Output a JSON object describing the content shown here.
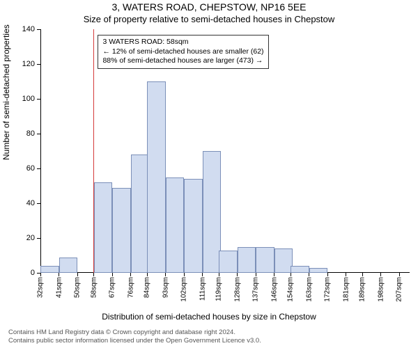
{
  "title": "3, WATERS ROAD, CHEPSTOW, NP16 5EE",
  "subtitle": "Size of property relative to semi-detached houses in Chepstow",
  "y_axis_label": "Number of semi-detached properties",
  "x_axis_label": "Distribution of semi-detached houses by size in Chepstow",
  "chart": {
    "type": "histogram",
    "ylim": [
      0,
      140
    ],
    "ytick_step": 20,
    "yticks": [
      0,
      20,
      40,
      60,
      80,
      100,
      120,
      140
    ],
    "x_start": 32,
    "x_end": 212,
    "bar_bin_width": 9,
    "xticks": [
      32,
      41,
      50,
      58,
      67,
      76,
      84,
      93,
      102,
      111,
      119,
      128,
      137,
      146,
      154,
      163,
      172,
      181,
      189,
      198,
      207
    ],
    "xtick_unit": "sqm",
    "bar_fill": "#d1dcf0",
    "bar_border": "#7b8fb8",
    "background": "#ffffff",
    "axis_color": "#000000",
    "label_fontsize": 12,
    "tick_fontsize": 11,
    "bars": [
      {
        "x": 32,
        "v": 4
      },
      {
        "x": 41,
        "v": 9
      },
      {
        "x": 50,
        "v": 0
      },
      {
        "x": 58,
        "v": 52
      },
      {
        "x": 67,
        "v": 49
      },
      {
        "x": 76,
        "v": 68
      },
      {
        "x": 84,
        "v": 110
      },
      {
        "x": 93,
        "v": 55
      },
      {
        "x": 102,
        "v": 54
      },
      {
        "x": 111,
        "v": 70
      },
      {
        "x": 119,
        "v": 13
      },
      {
        "x": 128,
        "v": 15
      },
      {
        "x": 137,
        "v": 15
      },
      {
        "x": 146,
        "v": 14
      },
      {
        "x": 154,
        "v": 4
      },
      {
        "x": 163,
        "v": 3
      },
      {
        "x": 172,
        "v": 0
      },
      {
        "x": 181,
        "v": 0
      },
      {
        "x": 189,
        "v": 0
      },
      {
        "x": 198,
        "v": 0
      },
      {
        "x": 207,
        "v": 0
      }
    ],
    "reference_line": {
      "x": 58,
      "color": "#d43b3b"
    },
    "annotation": {
      "line1": "3 WATERS ROAD: 58sqm",
      "line2": "← 12% of semi-detached houses are smaller (62)",
      "line3": "88% of semi-detached houses are larger (473) →",
      "box_border": "#333333",
      "box_bg": "#ffffff",
      "fontsize": 10.5,
      "top_offset": 8,
      "left_x": 60
    }
  },
  "footer": {
    "line1": "Contains HM Land Registry data © Crown copyright and database right 2024.",
    "line2": "Contains public sector information licensed under the Open Government Licence v3.0.",
    "color": "#555555",
    "fontsize": 9.5
  }
}
